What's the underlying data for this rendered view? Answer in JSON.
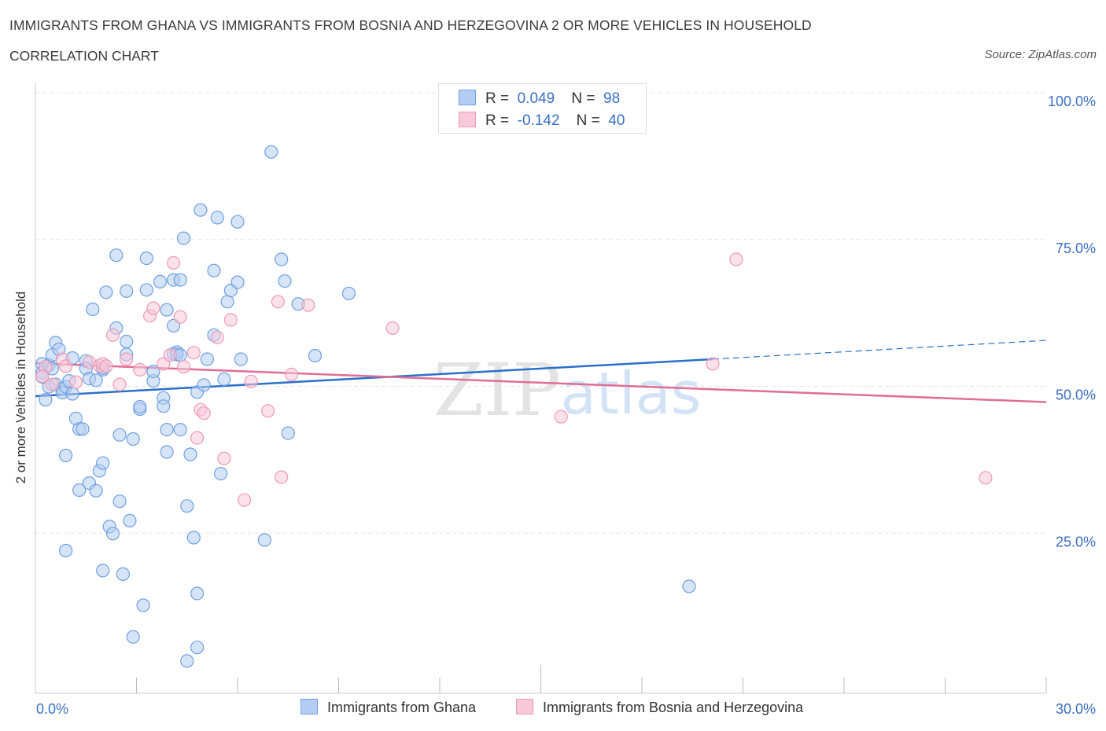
{
  "title": "IMMIGRANTS FROM GHANA VS IMMIGRANTS FROM BOSNIA AND HERZEGOVINA 2 OR MORE VEHICLES IN HOUSEHOLD",
  "subtitle": "CORRELATION CHART",
  "source": "Source: ZipAtlas.com",
  "watermark": {
    "zip": "ZIP",
    "atlas": "atlas"
  },
  "legend": {
    "rows": [
      {
        "r_label": "R =",
        "r_value": "0.049",
        "n_label": "N =",
        "n_value": "98"
      },
      {
        "r_label": "R =",
        "r_value": "-0.142",
        "n_label": "N =",
        "n_value": "40"
      }
    ]
  },
  "chart_data": {
    "type": "scatter",
    "ylabel": "2 or more Vehicles in Household",
    "xlabel": "",
    "xlim": [
      0,
      30
    ],
    "ylim": [
      0,
      100
    ],
    "x_tick_labels": [
      "0.0%",
      "30.0%"
    ],
    "y_tick_labels": [
      "100.0%",
      "75.0%",
      "50.0%",
      "25.0%"
    ],
    "y_ticks": [
      100,
      75,
      50,
      25
    ],
    "grid": true,
    "legend_position": "top-center",
    "series": [
      {
        "name": "Immigrants from Ghana",
        "color": "#6fa0e0",
        "fill": "#b5cdf2",
        "line_color": "#2a6fcc",
        "trend": {
          "x0": 0,
          "y0": 50.6,
          "x1": 20.1,
          "y1": 56.9,
          "dashed_to_x": 30,
          "dashed_to_y": 60.1
        },
        "points": [
          [
            0.2,
            56.1
          ],
          [
            0.2,
            54.6
          ],
          [
            0.2,
            53.9
          ],
          [
            0.3,
            50.0
          ],
          [
            0.4,
            55.9
          ],
          [
            0.4,
            52.2
          ],
          [
            0.5,
            57.6
          ],
          [
            0.5,
            55.3
          ],
          [
            0.6,
            59.7
          ],
          [
            0.6,
            52.6
          ],
          [
            0.7,
            58.6
          ],
          [
            0.8,
            51.9
          ],
          [
            0.8,
            51.2
          ],
          [
            0.9,
            52.2
          ],
          [
            0.9,
            40.5
          ],
          [
            0.9,
            24.3
          ],
          [
            1.0,
            53.2
          ],
          [
            1.1,
            57.1
          ],
          [
            1.1,
            51.0
          ],
          [
            1.2,
            46.8
          ],
          [
            1.3,
            45.0
          ],
          [
            1.3,
            34.6
          ],
          [
            1.4,
            45.0
          ],
          [
            1.5,
            56.6
          ],
          [
            1.5,
            55.3
          ],
          [
            1.6,
            53.6
          ],
          [
            1.6,
            35.8
          ],
          [
            1.7,
            65.4
          ],
          [
            1.8,
            34.5
          ],
          [
            1.8,
            53.3
          ],
          [
            1.9,
            37.9
          ],
          [
            2.0,
            39.2
          ],
          [
            2.0,
            20.9
          ],
          [
            2.0,
            55.1
          ],
          [
            2.0,
            55.4
          ],
          [
            2.1,
            68.3
          ],
          [
            2.2,
            28.4
          ],
          [
            2.3,
            27.2
          ],
          [
            2.4,
            62.2
          ],
          [
            2.4,
            74.6
          ],
          [
            2.5,
            32.7
          ],
          [
            2.5,
            44.0
          ],
          [
            2.6,
            20.3
          ],
          [
            2.7,
            57.7
          ],
          [
            2.7,
            59.9
          ],
          [
            2.7,
            68.5
          ],
          [
            2.8,
            29.4
          ],
          [
            2.9,
            43.3
          ],
          [
            2.9,
            9.6
          ],
          [
            3.1,
            48.4
          ],
          [
            3.1,
            48.8
          ],
          [
            3.2,
            15.0
          ],
          [
            3.3,
            68.7
          ],
          [
            3.3,
            74.1
          ],
          [
            3.5,
            53.2
          ],
          [
            3.5,
            54.8
          ],
          [
            3.7,
            70.1
          ],
          [
            3.8,
            50.3
          ],
          [
            3.8,
            48.9
          ],
          [
            3.9,
            65.3
          ],
          [
            3.9,
            44.9
          ],
          [
            3.9,
            41.1
          ],
          [
            4.1,
            70.4
          ],
          [
            4.1,
            57.8
          ],
          [
            4.1,
            62.6
          ],
          [
            4.2,
            58.1
          ],
          [
            4.2,
            57.7
          ],
          [
            4.3,
            70.4
          ],
          [
            4.3,
            57.6
          ],
          [
            4.3,
            44.9
          ],
          [
            4.4,
            77.5
          ],
          [
            4.5,
            31.9
          ],
          [
            4.5,
            5.5
          ],
          [
            4.6,
            40.7
          ],
          [
            4.7,
            26.5
          ],
          [
            4.8,
            51.3
          ],
          [
            4.8,
            7.8
          ],
          [
            4.8,
            17.0
          ],
          [
            4.9,
            82.3
          ],
          [
            5.0,
            52.5
          ],
          [
            5.1,
            56.9
          ],
          [
            5.3,
            72.0
          ],
          [
            5.3,
            61.0
          ],
          [
            5.4,
            81.0
          ],
          [
            5.5,
            37.4
          ],
          [
            5.6,
            53.5
          ],
          [
            5.7,
            66.7
          ],
          [
            5.8,
            68.6
          ],
          [
            6.0,
            80.3
          ],
          [
            6.0,
            70.0
          ],
          [
            6.1,
            56.9
          ],
          [
            6.8,
            26.1
          ],
          [
            7.4,
            70.2
          ],
          [
            7.0,
            92.2
          ],
          [
            7.3,
            73.9
          ],
          [
            7.5,
            44.3
          ],
          [
            7.8,
            66.3
          ],
          [
            8.3,
            57.5
          ],
          [
            9.3,
            68.1
          ],
          [
            19.4,
            18.2
          ]
        ]
      },
      {
        "name": "Immigrants from Bosnia and Herzegovina",
        "color": "#ee9ab6",
        "fill": "#f8c9d8",
        "line_color": "#e06d96",
        "trend": {
          "x0": 0,
          "y0": 56.2,
          "x1": 30,
          "y1": 49.6
        },
        "points": [
          [
            0.3,
            55.6
          ],
          [
            0.5,
            52.6
          ],
          [
            0.8,
            56.9
          ],
          [
            0.9,
            55.7
          ],
          [
            1.2,
            53.0
          ],
          [
            1.6,
            56.4
          ],
          [
            1.9,
            55.8
          ],
          [
            2.0,
            56.1
          ],
          [
            2.1,
            55.7
          ],
          [
            2.3,
            61.0
          ],
          [
            2.5,
            52.6
          ],
          [
            2.7,
            56.9
          ],
          [
            3.1,
            55.1
          ],
          [
            3.4,
            64.3
          ],
          [
            3.5,
            65.6
          ],
          [
            3.8,
            56.1
          ],
          [
            4.0,
            57.6
          ],
          [
            4.1,
            73.3
          ],
          [
            4.3,
            64.1
          ],
          [
            4.4,
            55.6
          ],
          [
            4.7,
            58.0
          ],
          [
            4.8,
            43.5
          ],
          [
            4.9,
            48.3
          ],
          [
            5.0,
            47.7
          ],
          [
            5.4,
            60.6
          ],
          [
            5.6,
            40.0
          ],
          [
            5.8,
            63.6
          ],
          [
            6.2,
            32.9
          ],
          [
            6.4,
            53.1
          ],
          [
            6.9,
            48.1
          ],
          [
            7.2,
            66.7
          ],
          [
            7.3,
            36.8
          ],
          [
            7.6,
            54.3
          ],
          [
            8.1,
            66.1
          ],
          [
            10.6,
            62.2
          ],
          [
            15.6,
            47.1
          ],
          [
            20.1,
            56.1
          ],
          [
            20.8,
            73.9
          ],
          [
            28.2,
            36.7
          ],
          [
            0.2,
            54.0
          ]
        ]
      }
    ]
  }
}
